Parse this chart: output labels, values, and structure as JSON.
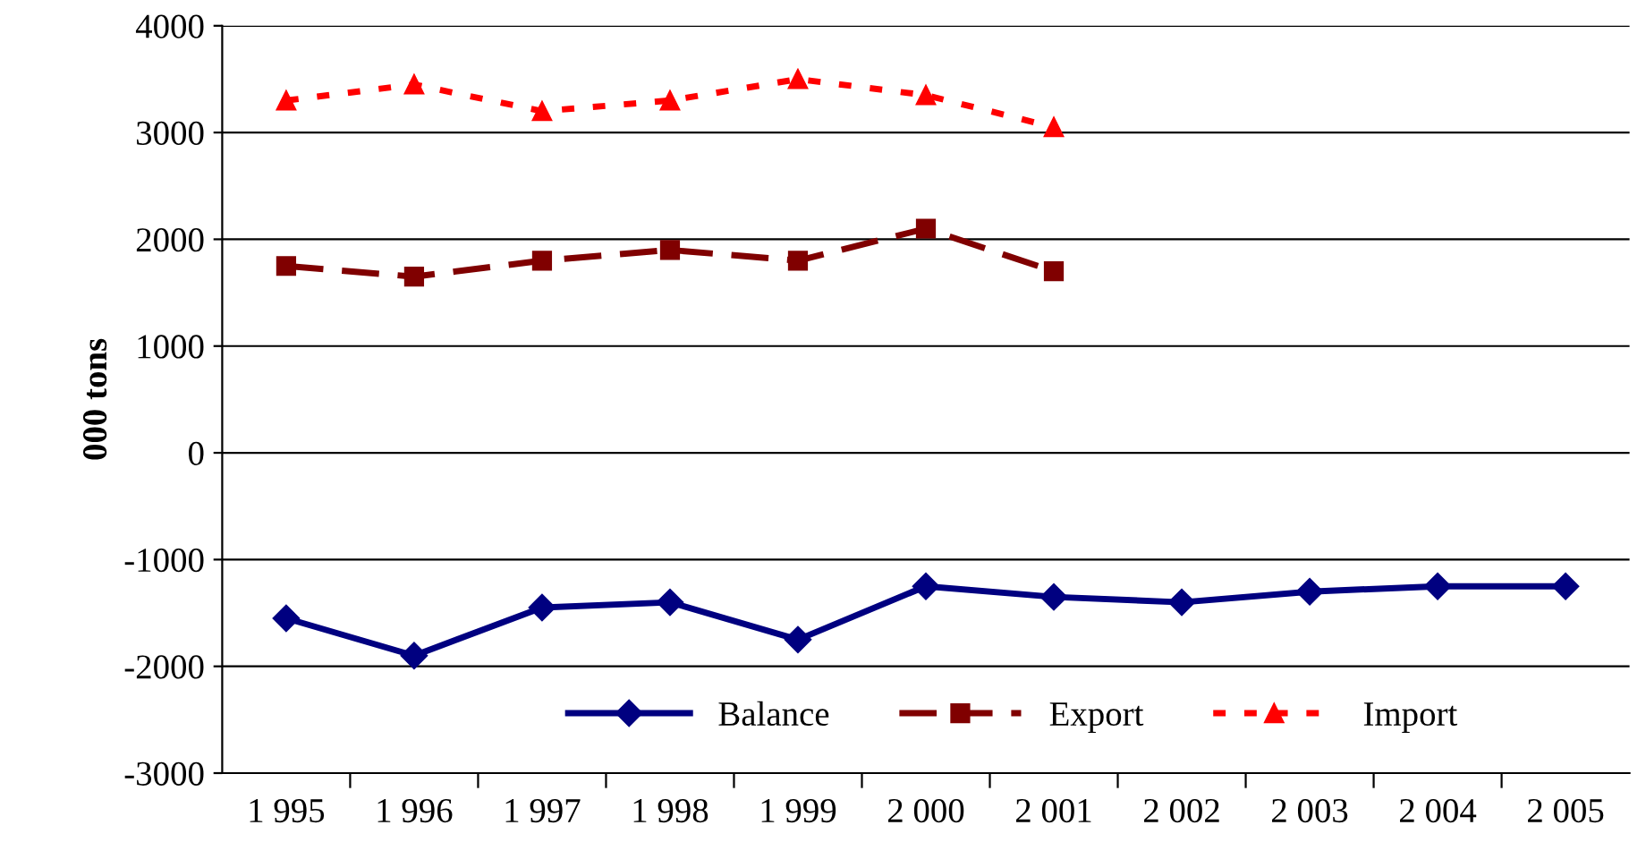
{
  "chart_data": {
    "type": "line",
    "ylabel": "000 tons",
    "categories": [
      "1 995",
      "1 996",
      "1 997",
      "1 998",
      "1 999",
      "2 000",
      "2 001",
      "2 002",
      "2 003",
      "2 004",
      "2 005"
    ],
    "series": [
      {
        "name": "Balance",
        "color": "#000080",
        "marker": "diamond",
        "line_style": "solid",
        "values": [
          -1550,
          -1900,
          -1450,
          -1400,
          -1750,
          -1250,
          -1350,
          -1400,
          -1300,
          -1250,
          -1250
        ]
      },
      {
        "name": "Export",
        "color": "#800000",
        "marker": "square",
        "line_style": "dashed",
        "values": [
          1750,
          1650,
          1800,
          1900,
          1800,
          2100,
          1700,
          null,
          null,
          null,
          null
        ]
      },
      {
        "name": "Import",
        "color": "#ff0000",
        "marker": "triangle",
        "line_style": "dotted",
        "values": [
          3300,
          3450,
          3200,
          3300,
          3500,
          3350,
          3050,
          null,
          null,
          null,
          null
        ]
      }
    ],
    "ylim": [
      -3000,
      4000
    ],
    "yticks": [
      -3000,
      -2000,
      -1000,
      0,
      1000,
      2000,
      3000,
      4000
    ],
    "grid": "y",
    "legend": "bottom right"
  }
}
